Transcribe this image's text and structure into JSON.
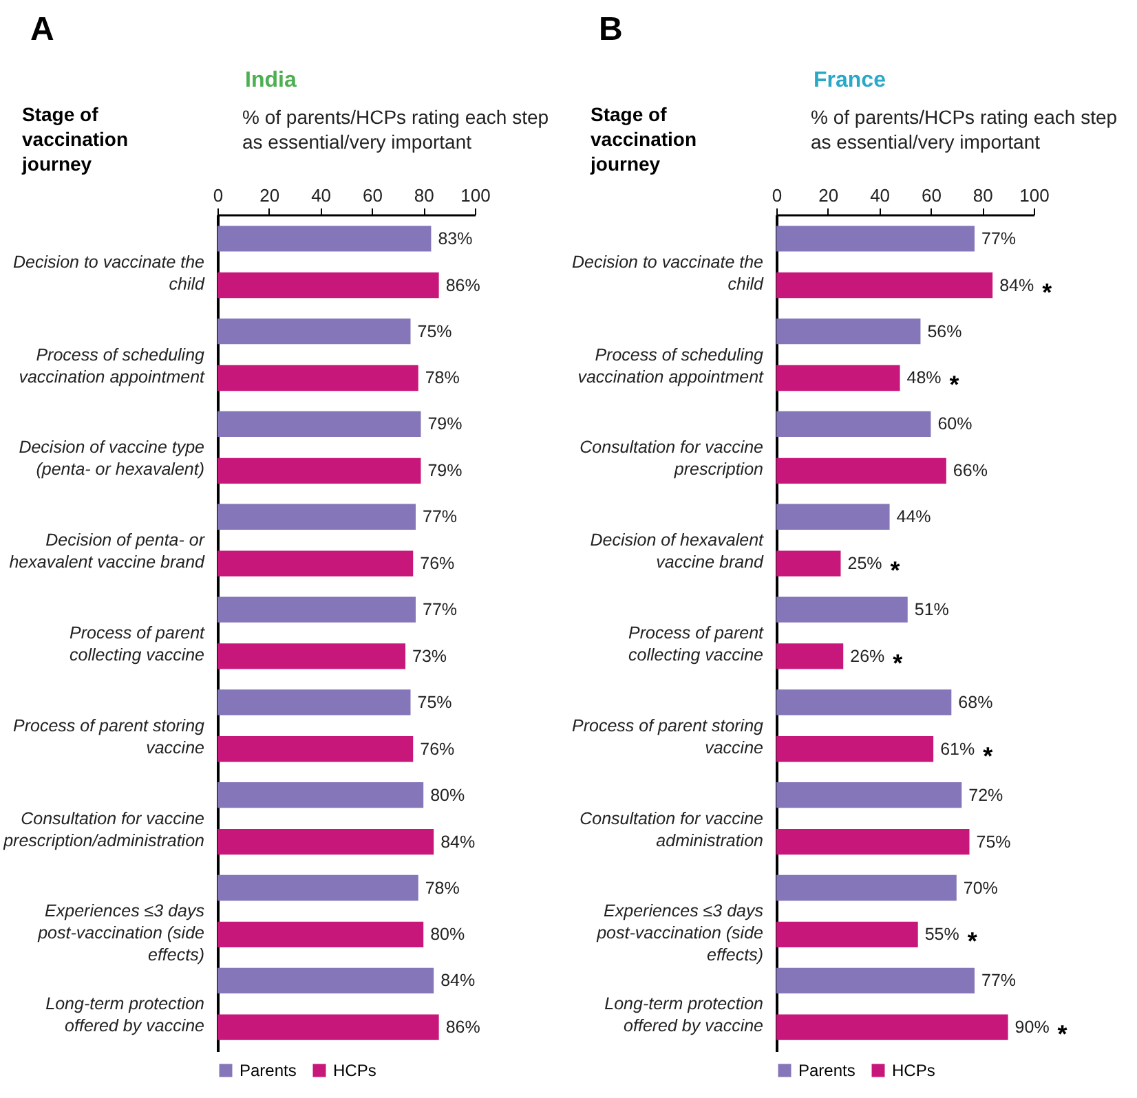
{
  "chart_data": [
    {
      "type": "bar",
      "orientation": "horizontal",
      "title": "India",
      "subtitle": "% of parents/HCPs rating each step as essential/very important",
      "ylabel": "Stage of vaccination journey",
      "categories": [
        "Decision to vaccinate the child",
        "Process of scheduling vaccination appointment",
        "Decision of vaccine type (penta- or hexavalent)",
        "Decision of penta- or hexavalent vaccine brand",
        "Process of parent collecting vaccine",
        "Process of parent storing vaccine",
        "Consultation for vaccine prescription/administration",
        "Experiences ≤3 days post-vaccination (side effects)",
        "Long-term protection offered by vaccine"
      ],
      "series": [
        {
          "name": "Parents",
          "color": "#8476b8",
          "values": [
            83,
            75,
            79,
            77,
            77,
            75,
            80,
            78,
            84
          ],
          "value_labels": [
            "83%",
            "75%",
            "79%",
            "77%",
            "77%",
            "75%",
            "80%",
            "78%",
            "84%"
          ]
        },
        {
          "name": "HCPs",
          "color": "#c8177a",
          "values": [
            86,
            78,
            79,
            76,
            73,
            76,
            84,
            80,
            86
          ],
          "value_labels": [
            "86%",
            "78%",
            "79%",
            "76%",
            "73%",
            "76%",
            "84%",
            "80%",
            "86%"
          ]
        }
      ],
      "xlim": [
        0,
        100
      ],
      "xticks": [
        0,
        20,
        40,
        60,
        80,
        100
      ],
      "legend": "bottom",
      "annotations": [
        "A"
      ]
    },
    {
      "type": "bar",
      "orientation": "horizontal",
      "title": "France",
      "subtitle": "% of parents/HCPs rating each step as essential/very important",
      "ylabel": "Stage of vaccination journey",
      "categories": [
        "Decision to vaccinate the child",
        "Process of scheduling vaccination appointment",
        "Consultation for vaccine prescription",
        "Decision of hexavalent vaccine brand",
        "Process of parent collecting vaccine",
        "Process of parent storing vaccine",
        "Consultation for vaccine administration",
        "Experiences ≤3 days post-vaccination (side effects)",
        "Long-term protection offered by vaccine"
      ],
      "series": [
        {
          "name": "Parents",
          "color": "#8476b8",
          "values": [
            77,
            56,
            60,
            44,
            51,
            68,
            72,
            70,
            77
          ],
          "value_labels": [
            "77%",
            "56%",
            "60%",
            "44%",
            "51%",
            "68%",
            "72%",
            "70%",
            "77%"
          ]
        },
        {
          "name": "HCPs",
          "color": "#c8177a",
          "values": [
            84,
            48,
            66,
            25,
            26,
            61,
            75,
            55,
            90
          ],
          "value_labels": [
            "84%",
            "48%",
            "66%",
            "25%",
            "26%",
            "61%",
            "75%",
            "55%",
            "90%"
          ]
        }
      ],
      "xlim": [
        0,
        100
      ],
      "xticks": [
        0,
        20,
        40,
        60,
        80,
        100
      ],
      "legend": "bottom",
      "annotations": [
        "B",
        {
          "text": "*",
          "x": 84,
          "y": "Decision to vaccinate the child"
        },
        {
          "text": "*",
          "x": 48,
          "y": "Process of scheduling vaccination appointment"
        },
        {
          "text": "*",
          "x": 25,
          "y": "Decision of hexavalent vaccine brand"
        },
        {
          "text": "*",
          "x": 26,
          "y": "Process of parent collecting vaccine"
        },
        {
          "text": "*",
          "x": 61,
          "y": "Process of parent storing vaccine"
        },
        {
          "text": "*",
          "x": 55,
          "y": "Experiences ≤3 days post-vaccination (side effects)"
        },
        {
          "text": "*",
          "x": 90,
          "y": "Long-term protection offered by vaccine"
        }
      ]
    }
  ]
}
